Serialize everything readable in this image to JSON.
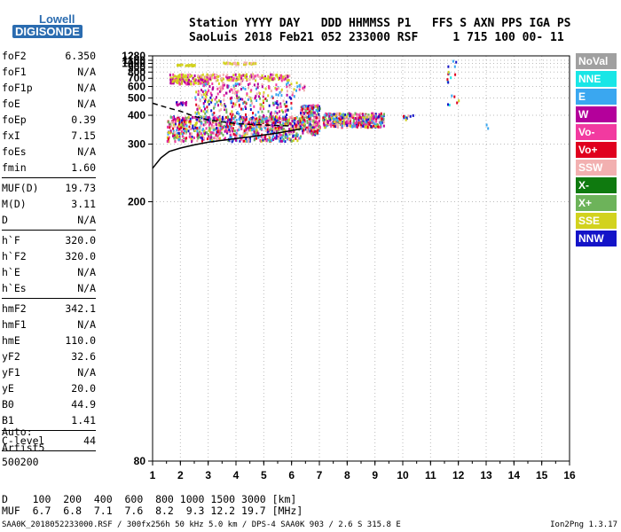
{
  "logo": {
    "line1": "Lowell",
    "line2": "DIGISONDE"
  },
  "header": {
    "line1": "Station YYYY DAY   DDD HHMMSS P1   FFS S AXN PPS IGA PS",
    "line2": "SaoLuis 2018 Feb21 052 233000 RSF     1 715 100 00- 11"
  },
  "params": [
    {
      "name": "foF2",
      "value": "6.350"
    },
    {
      "name": "foF1",
      "value": "N/A"
    },
    {
      "name": "foF1p",
      "value": "N/A"
    },
    {
      "name": "foE",
      "value": "N/A"
    },
    {
      "name": "foEp",
      "value": "0.39"
    },
    {
      "name": "fxI",
      "value": "7.15"
    },
    {
      "name": "foEs",
      "value": "N/A"
    },
    {
      "name": "fmin",
      "value": "1.60"
    },
    {
      "sep": true
    },
    {
      "name": "MUF(D)",
      "value": "19.73"
    },
    {
      "name": "M(D)",
      "value": "3.11"
    },
    {
      "name": "D",
      "value": "N/A"
    },
    {
      "sep": true
    },
    {
      "name": "h`F",
      "value": "320.0"
    },
    {
      "name": "h`F2",
      "value": "320.0"
    },
    {
      "name": "h`E",
      "value": "N/A"
    },
    {
      "name": "h`Es",
      "value": "N/A"
    },
    {
      "sep": true
    },
    {
      "name": "hmF2",
      "value": "342.1"
    },
    {
      "name": "hmF1",
      "value": "N/A"
    },
    {
      "name": "hmE",
      "value": "110.0"
    },
    {
      "name": "yF2",
      "value": "32.6"
    },
    {
      "name": "yF1",
      "value": "N/A"
    },
    {
      "name": "yE",
      "value": "20.0"
    },
    {
      "name": "B0",
      "value": "44.9"
    },
    {
      "name": "B1",
      "value": "1.41"
    },
    {
      "sep": true
    },
    {
      "name": "C-level",
      "value": "44"
    },
    {
      "sep": true
    }
  ],
  "auto": {
    "line1": "Auto:",
    "line2": "Artist5",
    "line3": "500200"
  },
  "legend": [
    {
      "label": "NoVal",
      "color": "#a0a0a0"
    },
    {
      "label": "NNE",
      "color": "#19e6e6"
    },
    {
      "label": "E",
      "color": "#3aa7f0"
    },
    {
      "label": "W",
      "color": "#b4009b"
    },
    {
      "label": "Vo-",
      "color": "#f23aa0"
    },
    {
      "label": "Vo+",
      "color": "#e0001e"
    },
    {
      "label": "SSW",
      "color": "#f2b0b0"
    },
    {
      "label": "X-",
      "color": "#0f7a0f"
    },
    {
      "label": "X+",
      "color": "#6db35a"
    },
    {
      "label": "SSE",
      "color": "#d2d21e"
    },
    {
      "label": "NNW",
      "color": "#1414c8"
    }
  ],
  "footer": {
    "d_row": "D    100  200  400  600  800 1000 1500 3000 [km]",
    "muf_row": "MUF  6.7  6.8  7.1  7.6  8.2  9.3 12.2 19.7 [MHz]",
    "info": "SAA0K_2018052233000.RSF / 300fx256h 50 kHz 5.0 km / DPS-4 SAA0K 903 / 2.6 S 315.8 E",
    "version": "Ion2Png 1.3.17"
  },
  "chart_data": {
    "type": "scatter",
    "x_ticks": [
      "1",
      "2",
      "3",
      "4",
      "5",
      "6",
      "7",
      "8",
      "9",
      "10",
      "11",
      "12",
      "13",
      "14",
      "15",
      "16"
    ],
    "y_ticks": [
      "80",
      "200",
      "300",
      "400",
      "500",
      "600",
      "700",
      "800",
      "900",
      "1000",
      "1100",
      "1280"
    ],
    "xlim": [
      1,
      16
    ],
    "ylim": [
      80,
      1280
    ],
    "y_scale": "reciprocal",
    "grid": true,
    "legend_position": "right",
    "solid_trace": {
      "x": [
        1.0,
        1.3,
        1.6,
        2.0,
        2.5,
        3.0,
        3.5,
        4.0,
        4.5,
        5.0,
        5.5,
        6.0,
        6.35
      ],
      "y": [
        248,
        268,
        282,
        290,
        298,
        305,
        310,
        315,
        320,
        326,
        332,
        340,
        346
      ]
    },
    "dashed_trace": {
      "x": [
        1.0,
        1.5,
        2.0,
        2.5,
        3.0,
        3.5,
        4.0,
        4.5,
        5.0,
        5.5,
        6.0
      ],
      "y": [
        465,
        440,
        420,
        395,
        380,
        372,
        365,
        362,
        360,
        358,
        356
      ]
    }
  }
}
